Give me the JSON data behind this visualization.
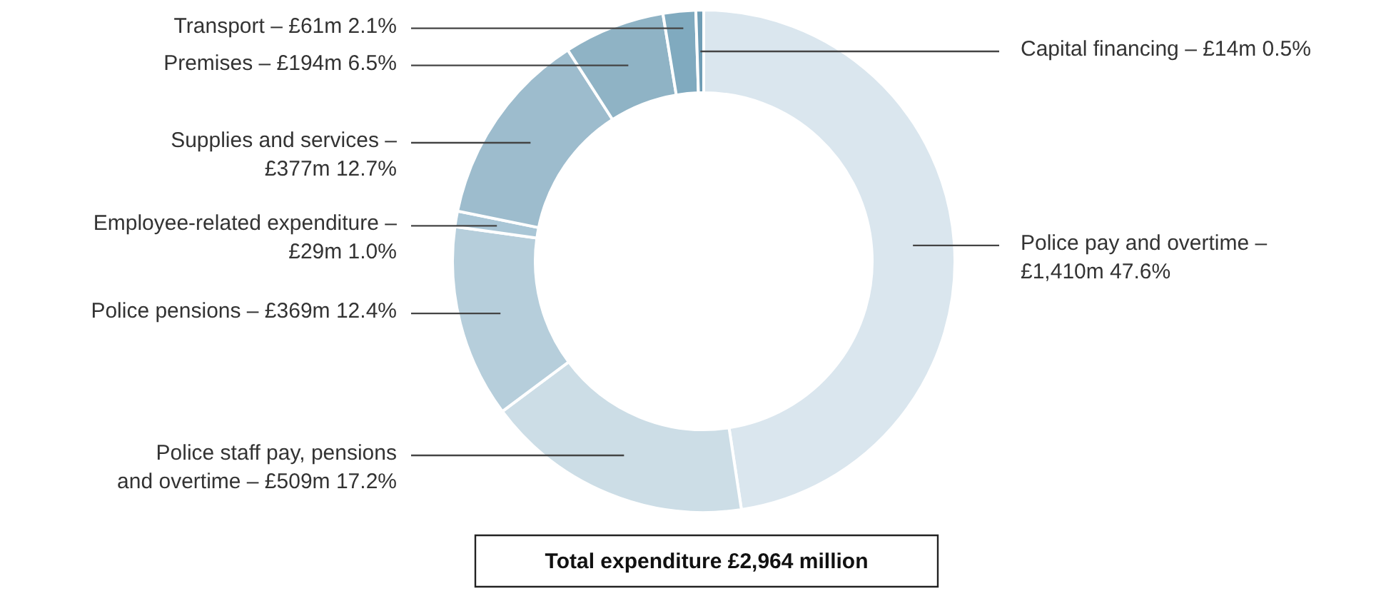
{
  "chart_data": {
    "type": "donut",
    "categories": [
      "Police pay and overtime –\n£1,410m 47.6%",
      "Police staff pay, pensions\nand overtime – £509m 17.2%",
      "Police pensions – £369m 12.4%",
      "Employee-related expenditure –\n£29m 1.0%",
      "Supplies and services –\n£377m 12.7%",
      "Premises – £194m 6.5%",
      "Transport – £61m 2.1%",
      "Capital financing – £14m 0.5%"
    ],
    "values": [
      47.6,
      17.2,
      12.4,
      1.0,
      12.7,
      6.5,
      2.1,
      0.5
    ],
    "colors": [
      "#dae6ee",
      "#ccdde6",
      "#b6cedb",
      "#a9c6d6",
      "#9dbccd",
      "#8fb3c5",
      "#80aabf",
      "#6f9db5"
    ],
    "annotations": [
      "Total expenditure £2,964 million"
    ]
  }
}
